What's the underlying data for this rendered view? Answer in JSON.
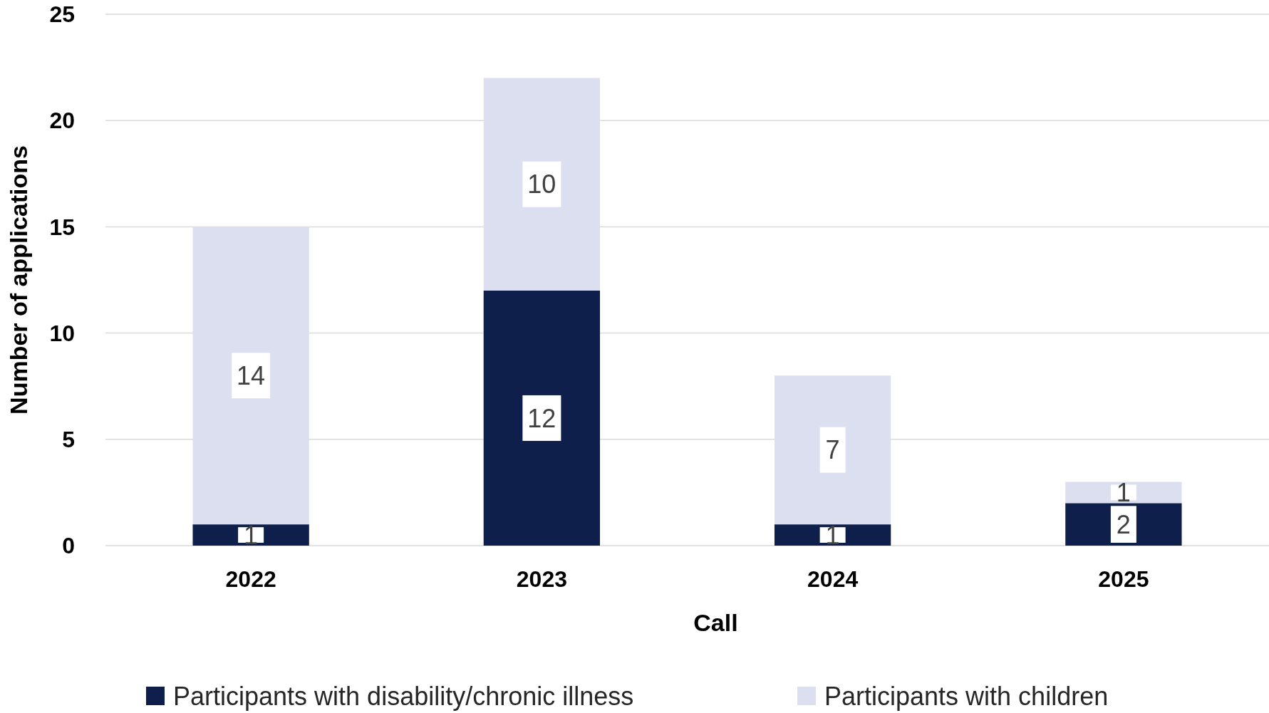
{
  "chart_data": {
    "type": "bar",
    "stacked": true,
    "xlabel": "Call",
    "ylabel": "Number of applications",
    "categories": [
      "2022",
      "2023",
      "2024",
      "2025"
    ],
    "series": [
      {
        "name": "Participants with disability/chronic illness",
        "color": "#0f1f4b",
        "values": [
          1,
          12,
          1,
          2
        ]
      },
      {
        "name": "Participants with children",
        "color": "#dcdff0",
        "values": [
          14,
          10,
          7,
          1
        ]
      }
    ],
    "ylim": [
      0,
      25
    ],
    "yticks": [
      0,
      5,
      10,
      15,
      20,
      25
    ],
    "grid": "y",
    "legend": "bottom",
    "data_labels": true
  }
}
